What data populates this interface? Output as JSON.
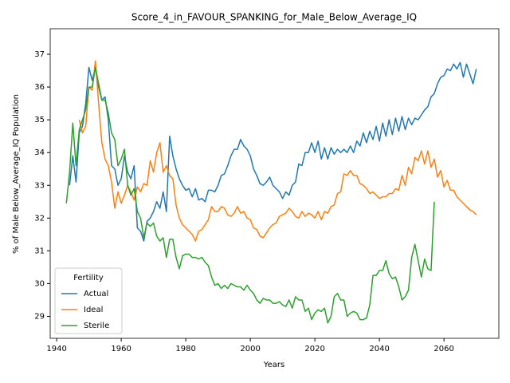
{
  "chart_data": {
    "type": "line",
    "title": "Score_4_in_FAVOUR_SPANKING_for_Male_Below_Average_IQ",
    "xlabel": "Years",
    "ylabel": "% of Male Below_Average_IQ Population",
    "legend_title": "Fertility",
    "legend": "lower left",
    "grid": false,
    "xlim": [
      1938,
      2077
    ],
    "ylim": [
      28.33,
      37.78
    ],
    "xticks": [
      1940,
      1960,
      1980,
      2000,
      2020,
      2040,
      2060
    ],
    "yticks": [
      29,
      30,
      31,
      32,
      33,
      34,
      35,
      36,
      37
    ],
    "x": [
      1943,
      1944,
      1945,
      1946,
      1947,
      1948,
      1949,
      1950,
      1951,
      1952,
      1953,
      1954,
      1955,
      1956,
      1957,
      1958,
      1959,
      1960,
      1961,
      1962,
      1963,
      1964,
      1965,
      1966,
      1967,
      1968,
      1969,
      1970,
      1971,
      1972,
      1973,
      1974,
      1975,
      1976,
      1977,
      1978,
      1979,
      1980,
      1981,
      1982,
      1983,
      1984,
      1985,
      1986,
      1987,
      1988,
      1989,
      1990,
      1991,
      1992,
      1993,
      1994,
      1995,
      1996,
      1997,
      1998,
      1999,
      2000,
      2001,
      2002,
      2003,
      2004,
      2005,
      2006,
      2007,
      2008,
      2009,
      2010,
      2011,
      2012,
      2013,
      2014,
      2015,
      2016,
      2017,
      2018,
      2019,
      2020,
      2021,
      2022,
      2023,
      2024,
      2025,
      2026,
      2027,
      2028,
      2029,
      2030,
      2031,
      2032,
      2033,
      2034,
      2035,
      2036,
      2037,
      2038,
      2039,
      2040,
      2041,
      2042,
      2043,
      2044,
      2045,
      2046,
      2047,
      2048,
      2049,
      2050,
      2051,
      2052,
      2053,
      2054,
      2055,
      2056,
      2057,
      2058,
      2059,
      2060,
      2061,
      2062,
      2063,
      2064,
      2065,
      2066,
      2067,
      2068,
      2069,
      2070
    ],
    "series": [
      {
        "name": "Actual",
        "color": "#1f77b4",
        "values": [
          null,
          33.0,
          33.9,
          33.1,
          34.6,
          34.8,
          35.5,
          36.6,
          36.2,
          36.6,
          36.0,
          35.6,
          35.7,
          35.0,
          33.6,
          33.5,
          33.0,
          33.2,
          33.9,
          33.4,
          33.2,
          33.6,
          31.7,
          31.6,
          31.3,
          31.9,
          32.0,
          32.2,
          32.5,
          32.3,
          32.8,
          32.2,
          34.5,
          33.9,
          33.5,
          33.2,
          33.0,
          32.85,
          32.9,
          32.65,
          32.9,
          32.55,
          32.6,
          32.5,
          32.85,
          32.85,
          32.8,
          33.0,
          33.3,
          33.35,
          33.6,
          33.9,
          34.1,
          34.1,
          34.4,
          34.2,
          34.1,
          33.9,
          33.5,
          33.3,
          33.05,
          33.0,
          33.1,
          33.25,
          33.0,
          32.9,
          32.8,
          32.6,
          32.8,
          32.7,
          33.0,
          33.1,
          33.65,
          33.6,
          34.0,
          34.0,
          34.3,
          34.0,
          34.35,
          33.8,
          34.15,
          33.8,
          34.15,
          33.95,
          34.1,
          34.0,
          34.1,
          34.0,
          34.2,
          34.0,
          34.35,
          34.2,
          34.6,
          34.3,
          34.65,
          34.4,
          34.8,
          34.35,
          34.9,
          34.5,
          35.0,
          34.55,
          35.05,
          34.65,
          35.1,
          34.7,
          35.05,
          34.85,
          35.05,
          35.0,
          35.15,
          35.3,
          35.4,
          35.7,
          35.8,
          36.1,
          36.3,
          36.35,
          36.55,
          36.5,
          36.7,
          36.55,
          36.75,
          36.3,
          36.7,
          36.4,
          36.1,
          36.55
        ]
      },
      {
        "name": "Ideal",
        "color": "#ff7f0e",
        "values": [
          null,
          null,
          null,
          null,
          35.0,
          34.6,
          34.8,
          36.0,
          35.9,
          36.8,
          35.5,
          34.3,
          33.8,
          33.6,
          33.1,
          32.3,
          32.8,
          32.45,
          32.7,
          33.0,
          32.8,
          32.55,
          32.95,
          32.8,
          33.05,
          33.0,
          33.75,
          33.4,
          34.0,
          34.3,
          33.4,
          33.6,
          33.3,
          33.2,
          32.4,
          32.0,
          31.8,
          31.7,
          31.6,
          31.5,
          31.3,
          31.6,
          31.65,
          31.8,
          31.95,
          32.35,
          32.2,
          32.2,
          32.35,
          32.3,
          32.1,
          32.05,
          32.15,
          32.35,
          32.15,
          32.2,
          32.0,
          31.95,
          31.7,
          31.65,
          31.45,
          31.4,
          31.55,
          31.7,
          31.8,
          31.85,
          32.05,
          32.1,
          32.15,
          32.3,
          32.2,
          32.05,
          32.0,
          32.2,
          32.05,
          32.15,
          32.1,
          32.0,
          32.2,
          31.95,
          32.2,
          32.15,
          32.35,
          32.4,
          32.75,
          32.8,
          33.35,
          33.3,
          33.45,
          33.3,
          33.3,
          33.05,
          33.0,
          32.9,
          32.75,
          32.8,
          32.7,
          32.6,
          32.65,
          32.65,
          32.75,
          32.75,
          32.9,
          32.85,
          33.3,
          33.0,
          33.55,
          33.35,
          33.85,
          33.75,
          34.05,
          33.65,
          34.05,
          33.55,
          33.8,
          33.25,
          33.45,
          32.95,
          33.15,
          32.85,
          32.85,
          32.65,
          32.55,
          32.45,
          32.35,
          32.25,
          32.2,
          32.1
        ]
      },
      {
        "name": "Sterile",
        "color": "#2ca02c",
        "values": [
          32.45,
          33.4,
          34.9,
          33.6,
          34.7,
          35.0,
          35.3,
          36.0,
          36.0,
          36.6,
          36.1,
          35.6,
          35.6,
          35.2,
          34.6,
          34.4,
          33.6,
          33.8,
          34.1,
          33.0,
          32.7,
          32.9,
          32.2,
          32.0,
          31.4,
          31.85,
          31.75,
          31.85,
          31.45,
          31.3,
          31.4,
          30.8,
          31.35,
          31.35,
          30.8,
          30.45,
          30.85,
          30.9,
          30.9,
          30.8,
          30.8,
          30.75,
          30.8,
          30.65,
          30.55,
          30.2,
          29.95,
          30.0,
          29.85,
          29.95,
          29.85,
          30.0,
          29.95,
          29.9,
          29.9,
          29.8,
          29.95,
          29.8,
          29.7,
          29.5,
          29.4,
          29.55,
          29.5,
          29.5,
          29.4,
          29.4,
          29.45,
          29.35,
          29.3,
          29.5,
          29.25,
          29.6,
          29.5,
          29.5,
          29.15,
          29.25,
          28.9,
          29.1,
          29.2,
          29.15,
          29.25,
          28.8,
          29.0,
          29.6,
          29.7,
          29.5,
          29.5,
          29.0,
          29.1,
          29.15,
          29.1,
          28.9,
          28.9,
          28.95,
          29.35,
          30.25,
          30.25,
          30.4,
          30.4,
          30.7,
          30.3,
          30.15,
          30.2,
          29.9,
          29.5,
          29.6,
          29.8,
          30.8,
          31.2,
          30.7,
          30.2,
          30.75,
          30.45,
          30.4,
          32.5,
          null,
          null,
          null,
          null,
          null,
          null,
          null,
          null,
          null,
          null,
          null,
          null,
          null
        ]
      }
    ]
  }
}
